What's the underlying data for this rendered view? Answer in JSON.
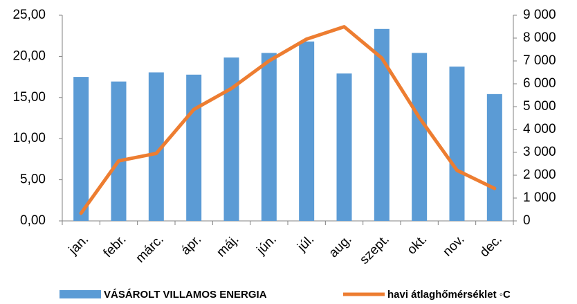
{
  "chart_data": {
    "type": "bar-line",
    "categories": [
      "jan.",
      "febr.",
      "márc.",
      "ápr.",
      "máj.",
      "jún.",
      "júl.",
      "aug.",
      "szept.",
      "okt.",
      "nov.",
      "dec."
    ],
    "series": [
      {
        "name": "VÁSÁROLT VILLAMOS ENERGIA",
        "type": "bar",
        "axis": "y2",
        "color": "#5b9bd5",
        "values": [
          6300,
          6100,
          6500,
          6400,
          7150,
          7350,
          7850,
          6450,
          8400,
          7350,
          6750,
          5550
        ]
      },
      {
        "name": "havi átlaghőmérséklet ◦C",
        "type": "line",
        "axis": "y",
        "color": "#ed7d31",
        "values": [
          0.93,
          7.3,
          8.2,
          13.55,
          16.1,
          19.45,
          22.1,
          23.6,
          19.8,
          12.55,
          6.15,
          3.95
        ]
      }
    ],
    "ylim": [
      0,
      25
    ],
    "yticks": [
      {
        "value": 0,
        "label": "0,00"
      },
      {
        "value": 5,
        "label": "5,00"
      },
      {
        "value": 10,
        "label": "10,00"
      },
      {
        "value": 15,
        "label": "15,00"
      },
      {
        "value": 20,
        "label": "20,00"
      },
      {
        "value": 25,
        "label": "25,00"
      }
    ],
    "y2lim": [
      0,
      9000
    ],
    "y2ticks": [
      0,
      {
        "value": 1000,
        "label": "1 000"
      },
      {
        "value": 2000,
        "label": "2 000"
      },
      {
        "value": 3000,
        "label": "3 000"
      },
      {
        "value": 4000,
        "label": "4 000"
      },
      {
        "value": 5000,
        "label": "5 000"
      },
      {
        "value": 6000,
        "label": "6 000"
      },
      {
        "value": 7000,
        "label": "7 000"
      },
      {
        "value": 8000,
        "label": "8 000"
      },
      {
        "value": 9000,
        "label": "9 000"
      }
    ],
    "grid": false,
    "legend": "bottom"
  }
}
